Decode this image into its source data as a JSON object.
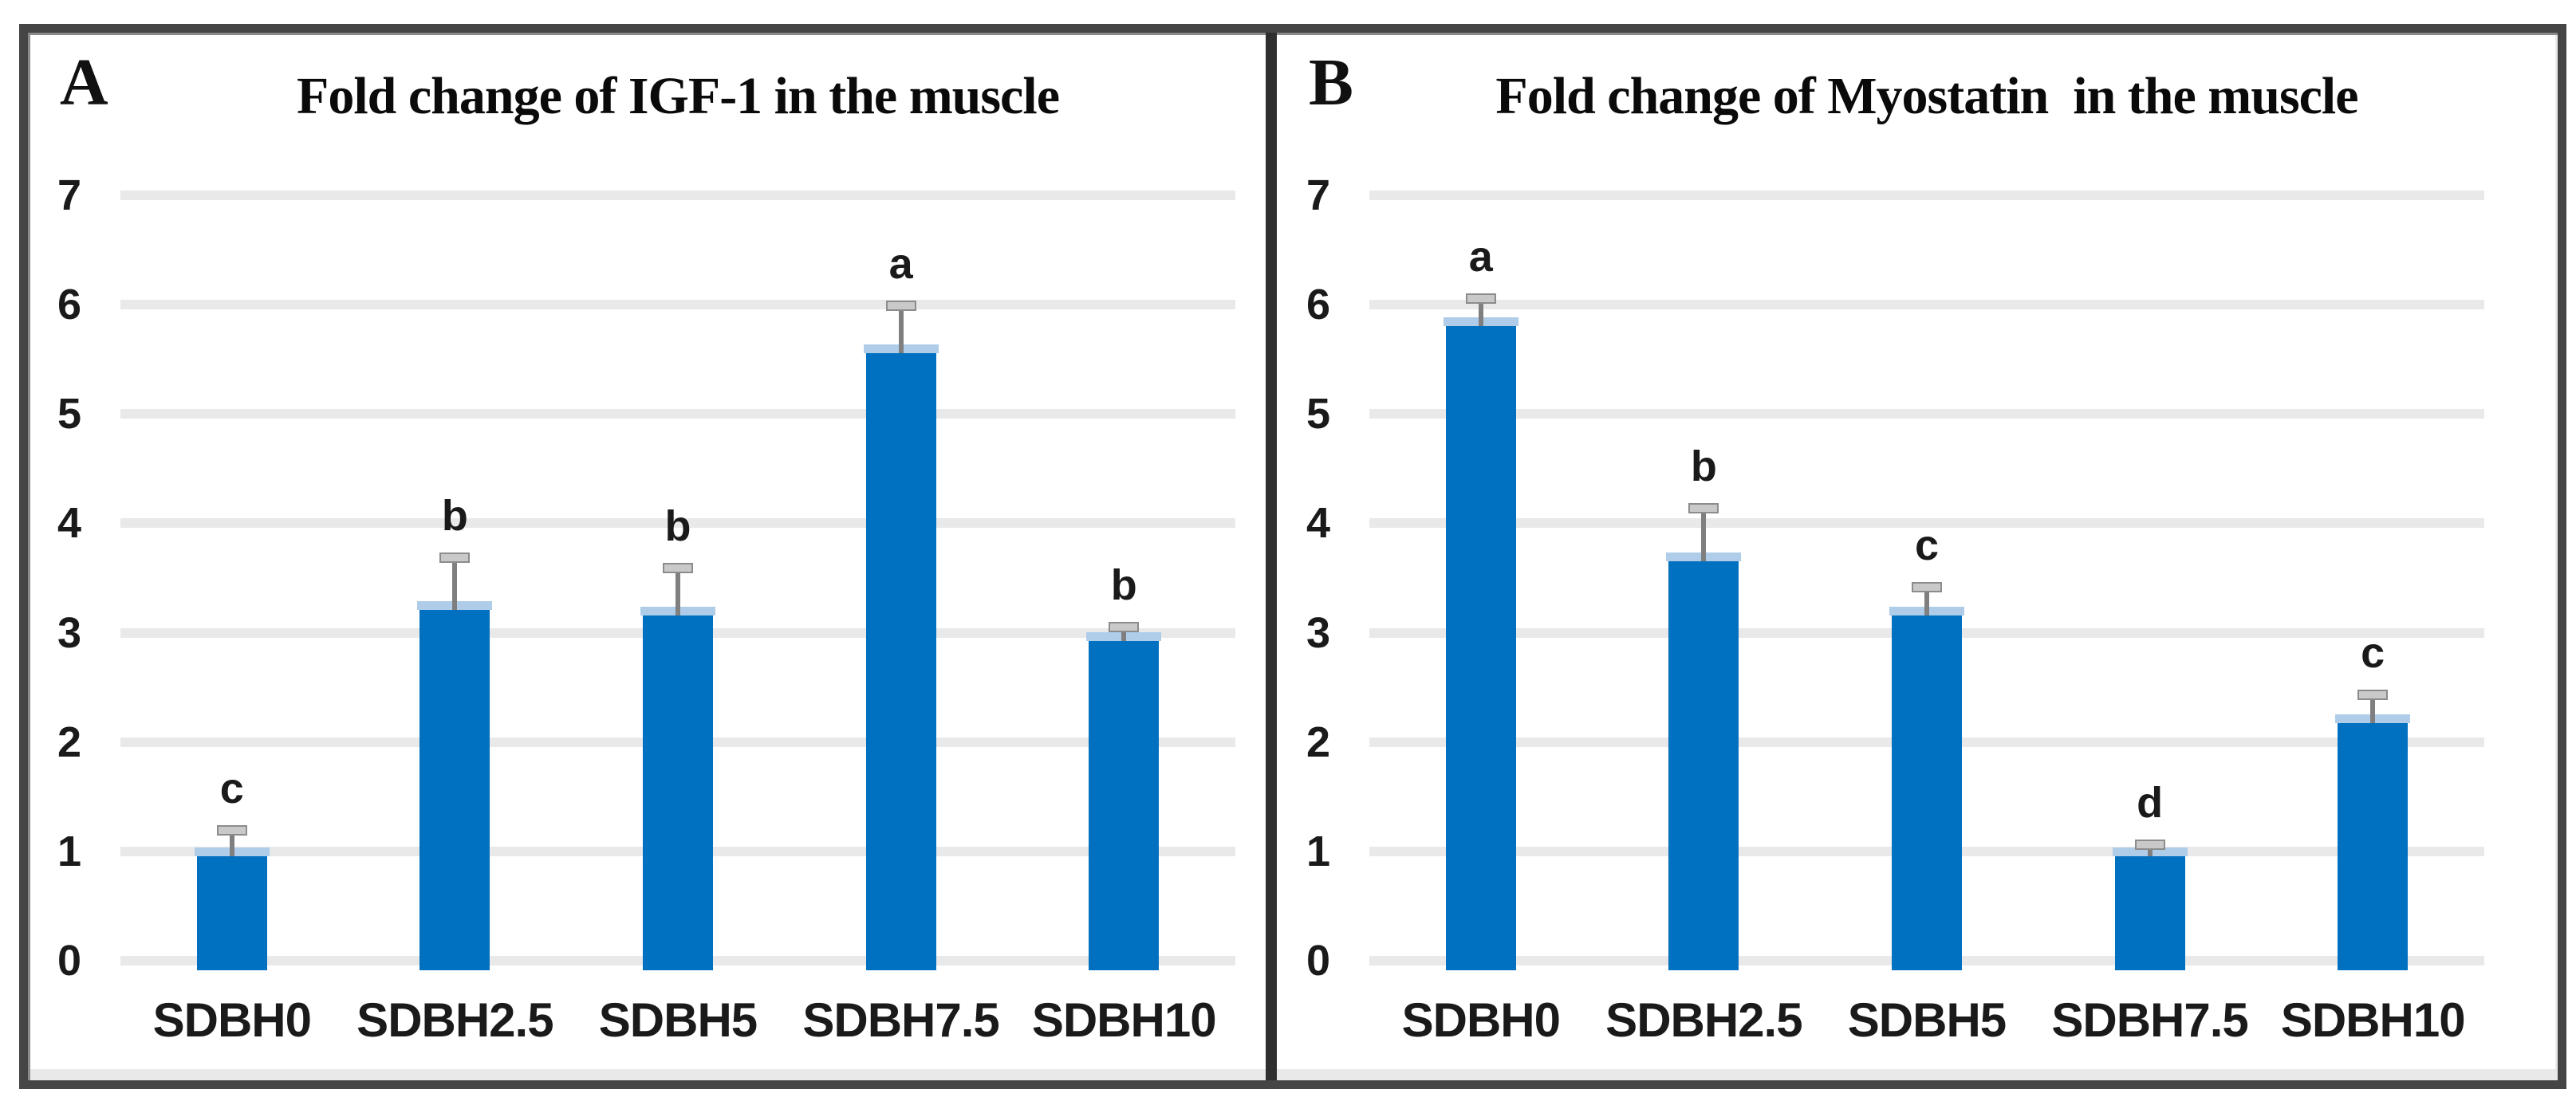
{
  "chart_data": [
    {
      "type": "bar",
      "panel_letter": "A",
      "title": "Fold change of IGF-1 in the muscle",
      "categories": [
        "SDBH0",
        "SDBH2.5",
        "SDBH5",
        "SDBH7.5",
        "SDBH10"
      ],
      "values": [
        1.0,
        3.25,
        3.2,
        5.6,
        2.97
      ],
      "error_plus": [
        0.2,
        0.45,
        0.4,
        0.4,
        0.09
      ],
      "sig_letters": [
        "c",
        "b",
        "b",
        "a",
        "b"
      ],
      "xlabel": "",
      "ylabel": "",
      "ylim": [
        0,
        7
      ],
      "yticks": [
        0,
        1,
        2,
        3,
        4,
        5,
        6,
        7
      ],
      "grid": true,
      "legend": false
    },
    {
      "type": "bar",
      "panel_letter": "B",
      "title": "Fold change of Myostatin  in the muscle",
      "categories": [
        "SDBH0",
        "SDBH2.5",
        "SDBH5",
        "SDBH7.5",
        "SDBH10"
      ],
      "values": [
        5.85,
        3.7,
        3.2,
        1.0,
        2.22
      ],
      "error_plus": [
        0.22,
        0.45,
        0.23,
        0.07,
        0.22
      ],
      "sig_letters": [
        "a",
        "b",
        "c",
        "d",
        "c"
      ],
      "xlabel": "",
      "ylabel": "",
      "ylim": [
        0,
        7
      ],
      "yticks": [
        0,
        1,
        2,
        3,
        4,
        5,
        6,
        7
      ],
      "grid": true,
      "legend": false
    }
  ],
  "colors": {
    "bar": "#0070C0",
    "bar_top_highlight": "#AFCDE9",
    "gridline": "#E9E9E9",
    "error_bar": "#7F7F7F",
    "error_cap_fill": "#C9C9C9",
    "error_cap_border": "#8C8C8C",
    "frame_border": "#454545",
    "divider": "#2F2F2F",
    "text": "#1A1A1A",
    "background": "#FFFFFF"
  }
}
